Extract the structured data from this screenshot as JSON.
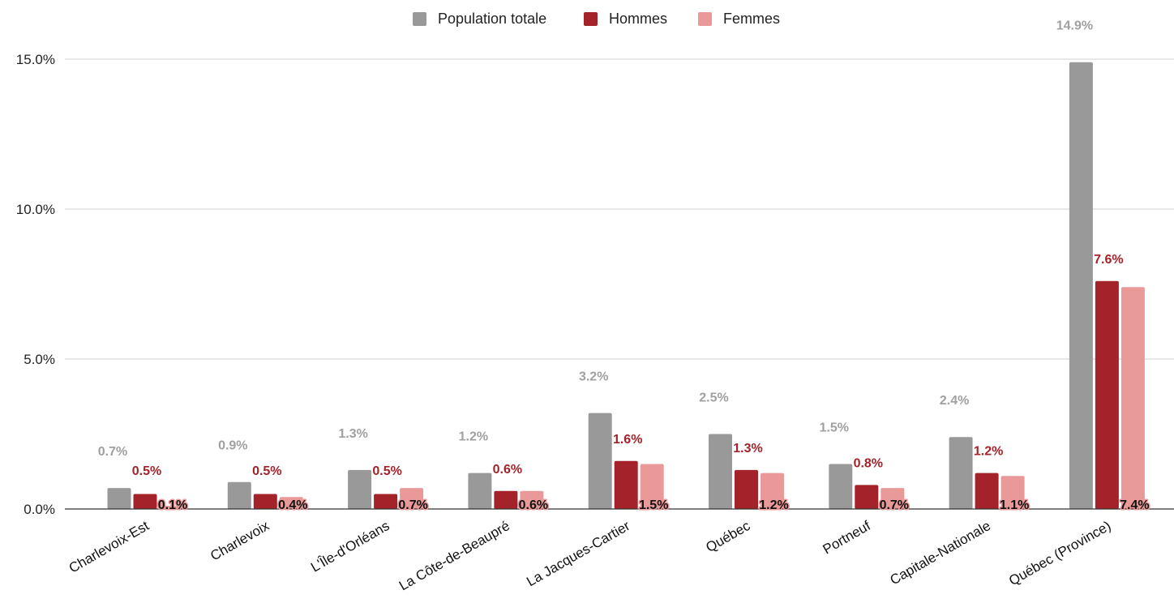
{
  "chart_data": {
    "type": "bar",
    "categories": [
      "Charlevoix-Est",
      "Charlevoix",
      "L'Île-d'Orléans",
      "La Côte-de-Beaupré",
      "La Jacques-Cartier",
      "Québec",
      "Portneuf",
      "Capitale-Nationale",
      "Québec (Province)"
    ],
    "series": [
      {
        "name": "Population totale",
        "color": "#999999",
        "values": [
          0.7,
          0.9,
          1.3,
          1.2,
          3.2,
          2.5,
          1.5,
          2.4,
          14.9
        ],
        "labels": [
          "0.7%",
          "0.9%",
          "1.3%",
          "1.2%",
          "3.2%",
          "2.5%",
          "1.5%",
          "2.4%",
          "14.9%"
        ]
      },
      {
        "name": "Hommes",
        "color": "#a4232b",
        "values": [
          0.5,
          0.5,
          0.5,
          0.6,
          1.6,
          1.3,
          0.8,
          1.2,
          7.6
        ],
        "labels": [
          "0.5%",
          "0.5%",
          "0.5%",
          "0.6%",
          "1.6%",
          "1.3%",
          "0.8%",
          "1.2%",
          "7.6%"
        ]
      },
      {
        "name": "Femmes",
        "color": "#ea9999",
        "values": [
          0.1,
          0.4,
          0.7,
          0.6,
          1.5,
          1.2,
          0.7,
          1.1,
          7.4
        ],
        "labels": [
          "0.1%",
          "0.4%",
          "0.7%",
          "0.6%",
          "1.5%",
          "1.2%",
          "0.7%",
          "1.1%",
          "7.4%"
        ]
      }
    ],
    "y_ticks": [
      0,
      5,
      10,
      15
    ],
    "y_tick_labels": [
      "0.0%",
      "5.0%",
      "10.0%",
      "15.0%"
    ],
    "ylim": [
      0,
      15
    ],
    "grid": true,
    "legend_position": "top-center",
    "title": "",
    "xlabel": "",
    "ylabel": ""
  }
}
